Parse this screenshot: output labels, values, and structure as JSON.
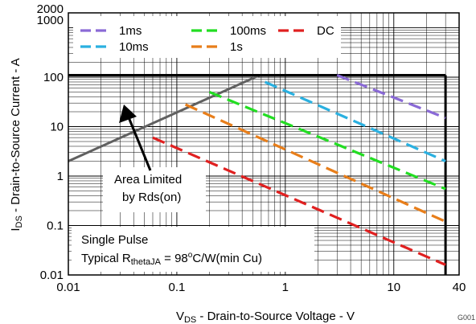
{
  "chart_data": {
    "type": "line",
    "title": "",
    "xlabel": {
      "main": "V",
      "sub": "DS",
      "rest": " - Drain-to-Source Voltage - V"
    },
    "ylabel": {
      "main": "I",
      "sub": "DS",
      "rest": " - Drain-to-Source Current - A"
    },
    "x_scale": "log",
    "y_scale": "log",
    "xlim": [
      0.01,
      40
    ],
    "ylim": [
      0.01,
      2000
    ],
    "x_ticks": [
      {
        "value": 0.01,
        "label": "0.01"
      },
      {
        "value": 0.1,
        "label": "0.1"
      },
      {
        "value": 1,
        "label": "1"
      },
      {
        "value": 10,
        "label": "10"
      },
      {
        "value": 40,
        "label": "40"
      }
    ],
    "y_ticks": [
      {
        "value": 0.01,
        "label": "0.01"
      },
      {
        "value": 0.1,
        "label": "0.1"
      },
      {
        "value": 1,
        "label": "1"
      },
      {
        "value": 10,
        "label": "10"
      },
      {
        "value": 100,
        "label": "100"
      },
      {
        "value": 1000,
        "label": "1000"
      },
      {
        "value": 2000,
        "label": "2000"
      }
    ],
    "grid": true,
    "legend_position": "top-left",
    "series": [
      {
        "name": "1ms",
        "color": "#8a6ad6",
        "dash": true,
        "x": [
          3.0,
          30
        ],
        "y": [
          110,
          15
        ]
      },
      {
        "name": "10ms",
        "color": "#2ab0e0",
        "dash": true,
        "x": [
          0.65,
          30
        ],
        "y": [
          80,
          2
        ]
      },
      {
        "name": "100ms",
        "color": "#22dd22",
        "dash": true,
        "x": [
          0.2,
          30
        ],
        "y": [
          50,
          0.55
        ]
      },
      {
        "name": "1s",
        "color": "#e87e1a",
        "dash": true,
        "x": [
          0.12,
          30
        ],
        "y": [
          28,
          0.12
        ]
      },
      {
        "name": "DC",
        "color": "#e02020",
        "dash": true,
        "x": [
          0.06,
          30
        ],
        "y": [
          6,
          0.016
        ]
      }
    ],
    "limits": [
      {
        "kind": "rds-on",
        "color": "#606060",
        "x": [
          0.01,
          0.58
        ],
        "y": [
          2,
          110
        ]
      },
      {
        "kind": "current-limit",
        "color": "#000000",
        "x": [
          0.01,
          30
        ],
        "y": [
          110,
          110
        ]
      },
      {
        "kind": "voltage-limit",
        "color": "#000000",
        "x": [
          30,
          30
        ],
        "y": [
          0.01,
          110
        ]
      }
    ],
    "annotations": {
      "area_limited": [
        "Area Limited",
        "by Rds(on)"
      ],
      "single_pulse": "Single Pulse",
      "typical_prefix": "Typical R",
      "typical_sub": "thetaJA",
      "typical_value": " = 98",
      "typical_sup": "o",
      "typical_suffix": "C/W(min Cu)",
      "figure_code": "G001"
    }
  }
}
